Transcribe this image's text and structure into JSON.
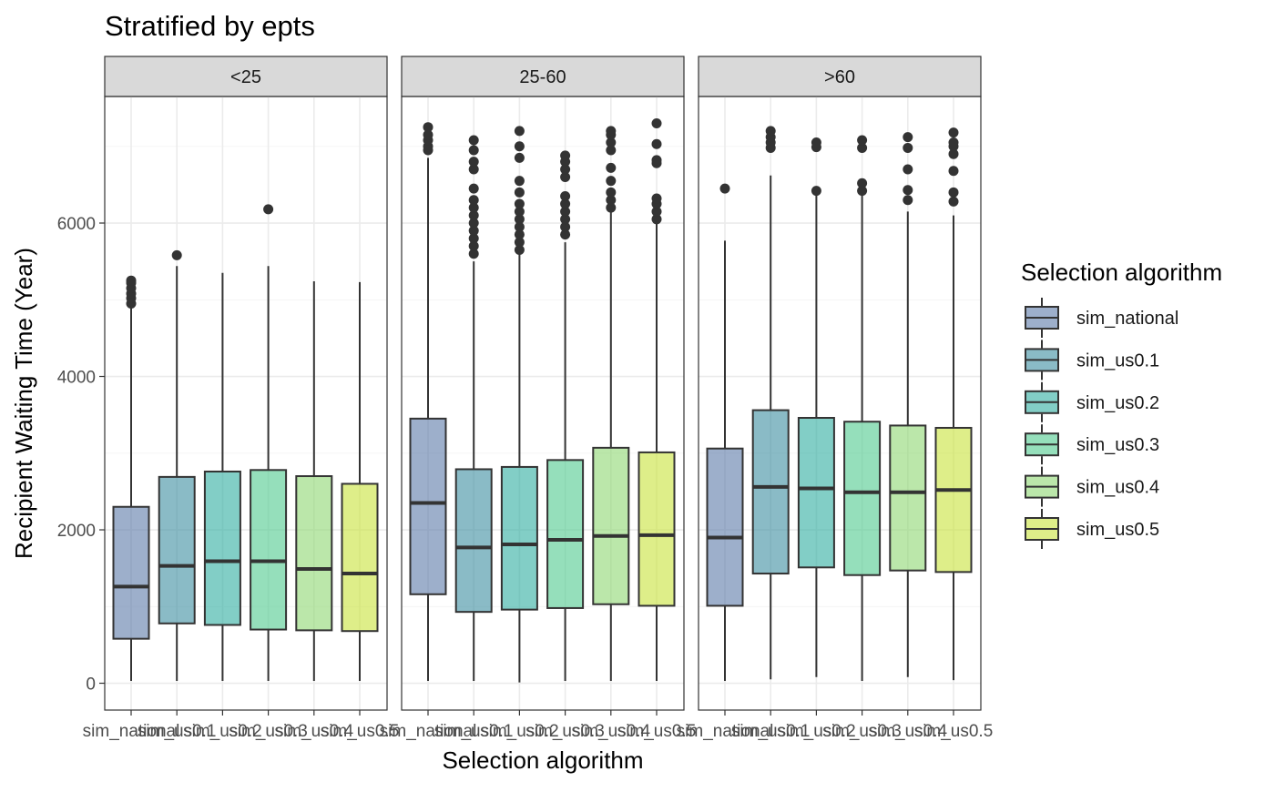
{
  "chart_data": {
    "type": "boxplot",
    "title": "Stratified by epts",
    "xlabel": "Selection algorithm",
    "ylabel": "Recipient Waiting Time (Year)",
    "ylim": [
      -350,
      7650
    ],
    "y_ticks": [
      0,
      2000,
      4000,
      6000
    ],
    "y_tick_labels": [
      "0",
      "2000",
      "4000",
      "6000"
    ],
    "grid": true,
    "legend_position": "right",
    "legend_title": "Selection algorithm",
    "categories": [
      "sim_national",
      "sim_us0.1",
      "sim_us0.2",
      "sim_us0.3",
      "sim_us0.4",
      "sim_us0.5"
    ],
    "colors": [
      "#5b7aa8",
      "#3c8ea0",
      "#2fada0",
      "#4fc98e",
      "#8ed771",
      "#c8e33a"
    ],
    "facets": [
      {
        "label": "<25",
        "boxes": [
          {
            "min": 30,
            "q1": 580,
            "median": 1260,
            "q3": 2300,
            "max": 4900,
            "outliers": [
              4950,
              5020,
              5080,
              5150,
              5220,
              5250
            ]
          },
          {
            "min": 30,
            "q1": 780,
            "median": 1530,
            "q3": 2690,
            "max": 5440,
            "outliers": [
              5580
            ]
          },
          {
            "min": 30,
            "q1": 760,
            "median": 1590,
            "q3": 2760,
            "max": 5350,
            "outliers": []
          },
          {
            "min": 30,
            "q1": 700,
            "median": 1590,
            "q3": 2780,
            "max": 5440,
            "outliers": [
              6180
            ]
          },
          {
            "min": 30,
            "q1": 690,
            "median": 1490,
            "q3": 2700,
            "max": 5240,
            "outliers": []
          },
          {
            "min": 30,
            "q1": 680,
            "median": 1430,
            "q3": 2600,
            "max": 5230,
            "outliers": []
          }
        ]
      },
      {
        "label": "25-60",
        "boxes": [
          {
            "min": 30,
            "q1": 1160,
            "median": 2350,
            "q3": 3450,
            "max": 6850,
            "outliers": [
              6950,
              7000,
              7080,
              7150,
              7250
            ]
          },
          {
            "min": 30,
            "q1": 930,
            "median": 1770,
            "q3": 2790,
            "max": 5500,
            "outliers": [
              5600,
              5700,
              5800,
              5900,
              6000,
              6100,
              6200,
              6300,
              6450,
              6700,
              6800,
              6950,
              7080
            ]
          },
          {
            "min": 10,
            "q1": 960,
            "median": 1810,
            "q3": 2820,
            "max": 5600,
            "outliers": [
              5650,
              5750,
              5850,
              5950,
              6050,
              6150,
              6250,
              6400,
              6550,
              6850,
              7000,
              7200
            ]
          },
          {
            "min": 30,
            "q1": 980,
            "median": 1870,
            "q3": 2910,
            "max": 5750,
            "outliers": [
              5850,
              5950,
              6050,
              6150,
              6250,
              6350,
              6600,
              6700,
              6800,
              6880
            ]
          },
          {
            "min": 30,
            "q1": 1030,
            "median": 1920,
            "q3": 3070,
            "max": 6150,
            "outliers": [
              6200,
              6300,
              6400,
              6550,
              6720,
              6950,
              7050,
              7150,
              7200
            ]
          },
          {
            "min": 30,
            "q1": 1010,
            "median": 1930,
            "q3": 3010,
            "max": 6000,
            "outliers": [
              6050,
              6150,
              6250,
              6320,
              6780,
              6820,
              7030,
              7300
            ]
          }
        ]
      },
      {
        "label": ">60",
        "boxes": [
          {
            "min": 30,
            "q1": 1010,
            "median": 1900,
            "q3": 3060,
            "max": 5770,
            "outliers": [
              6450
            ]
          },
          {
            "min": 50,
            "q1": 1430,
            "median": 2560,
            "q3": 3560,
            "max": 6620,
            "outliers": [
              6980,
              7050,
              7120,
              7200
            ]
          },
          {
            "min": 80,
            "q1": 1510,
            "median": 2540,
            "q3": 3460,
            "max": 6400,
            "outliers": [
              6420,
              6990,
              7050
            ]
          },
          {
            "min": 30,
            "q1": 1410,
            "median": 2490,
            "q3": 3410,
            "max": 6380,
            "outliers": [
              6420,
              6520,
              6980,
              7080
            ]
          },
          {
            "min": 80,
            "q1": 1470,
            "median": 2490,
            "q3": 3360,
            "max": 6150,
            "outliers": [
              6300,
              6430,
              6700,
              6980,
              7120
            ]
          },
          {
            "min": 40,
            "q1": 1450,
            "median": 2520,
            "q3": 3330,
            "max": 6100,
            "outliers": [
              6280,
              6400,
              6680,
              6900,
              7000,
              7050,
              7180
            ]
          }
        ]
      }
    ]
  }
}
